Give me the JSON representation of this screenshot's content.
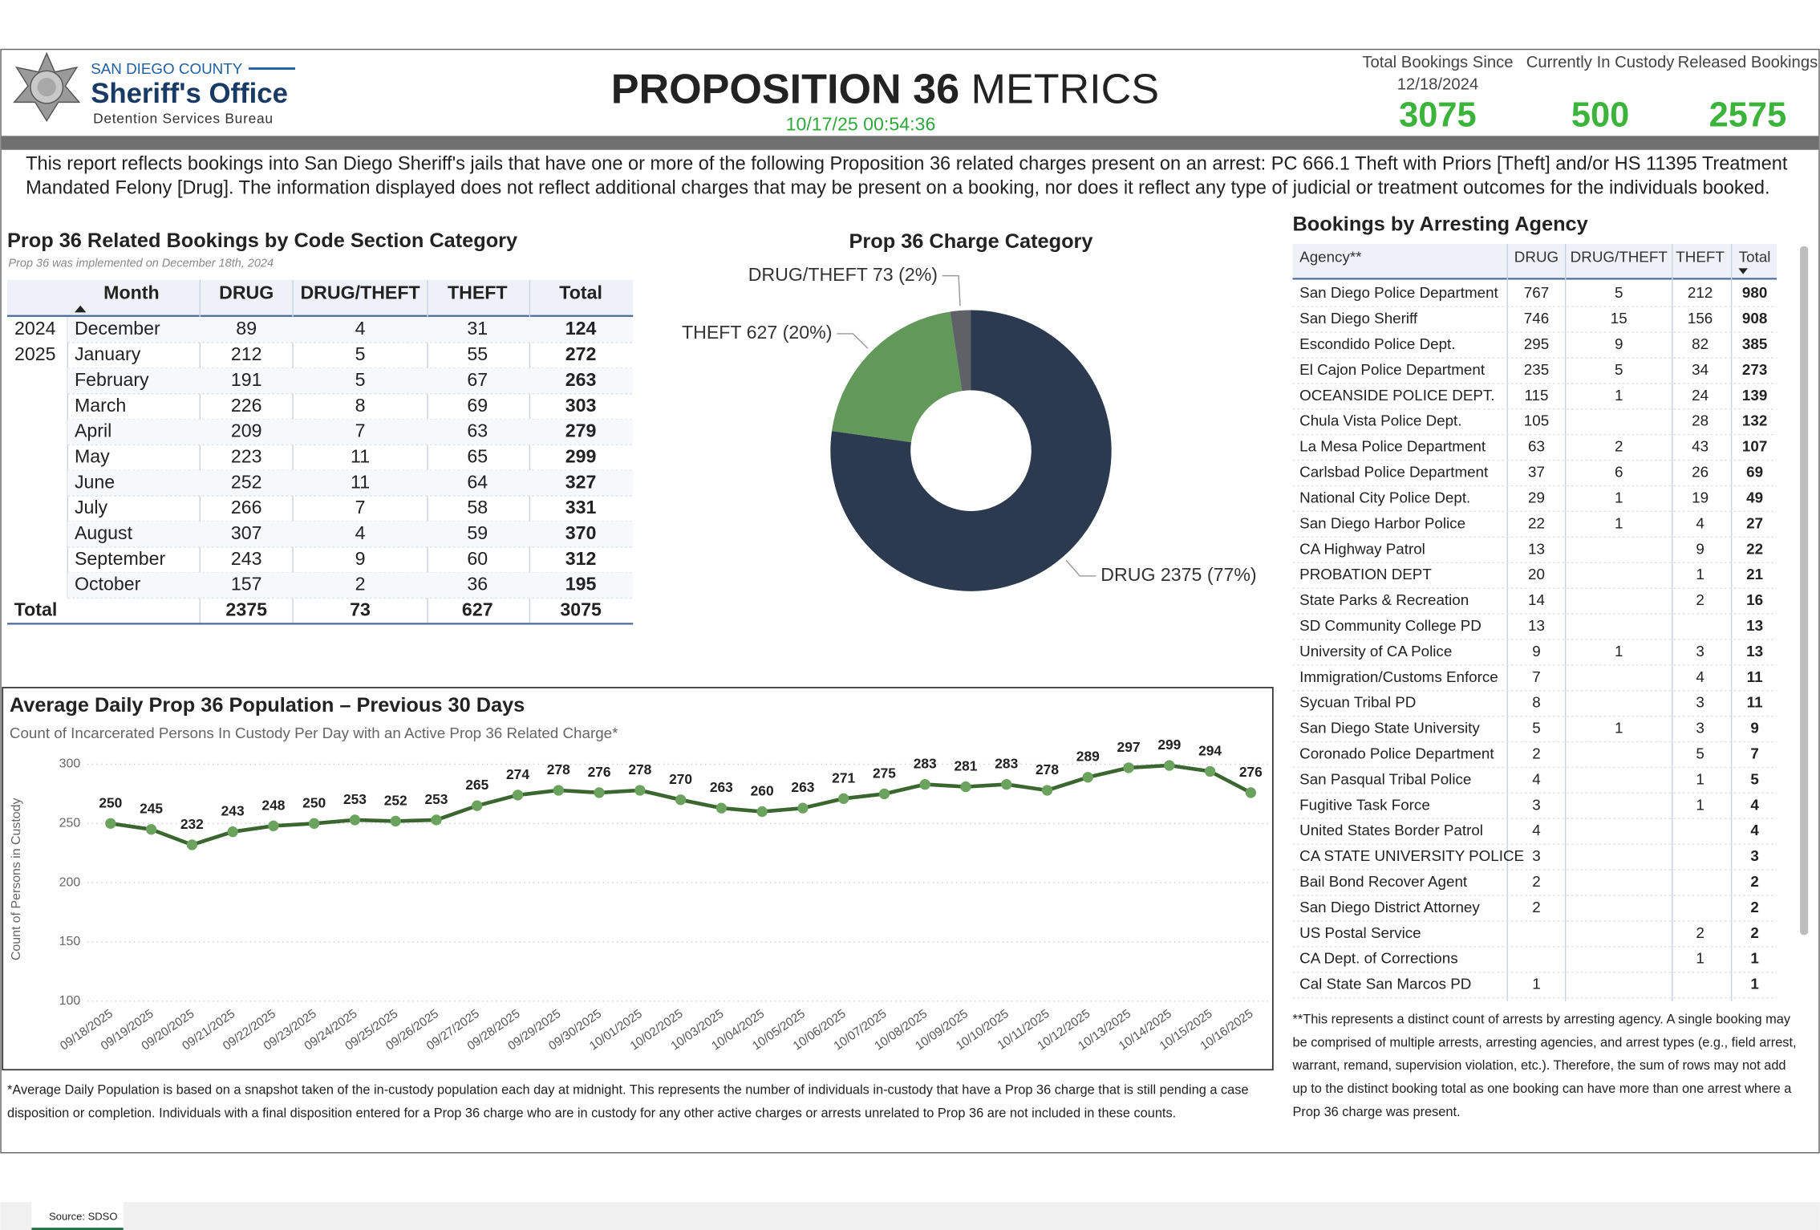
{
  "header": {
    "org_line1": "SAN DIEGO COUNTY",
    "org_line2": "Sheriff's Office",
    "org_line3": "Detention Services Bureau",
    "title_bold": "PROPOSITION 36",
    "title_light": "METRICS",
    "timestamp": "10/17/25 00:54:36",
    "kpis": [
      {
        "label": "Total Bookings Since 12/18/2024",
        "value": 3075
      },
      {
        "label": "Currently In Custody",
        "value": 500
      },
      {
        "label": "Released Bookings",
        "value": 2575
      }
    ]
  },
  "description": "This report reflects bookings into San Diego Sheriff's jails that have one or more of the following Proposition 36 related charges present on an arrest: PC 666.1 Theft with Priors [Theft] and/or HS 11395 Treatment Mandated Felony [Drug]. The information displayed does not reflect additional charges that may be present on a booking, nor does it reflect any type of judicial or treatment outcomes for the individuals booked.",
  "month_table": {
    "title": "Prop 36 Related Bookings by Code Section Category",
    "subtitle": "Prop 36 was implemented on December 18th, 2024",
    "columns": [
      "Month",
      "DRUG",
      "DRUG/THEFT",
      "THEFT",
      "Total"
    ],
    "rows": [
      [
        2024,
        "December",
        89,
        4,
        31,
        124
      ],
      [
        2025,
        "January",
        212,
        5,
        55,
        272
      ],
      [
        null,
        "February",
        191,
        5,
        67,
        263
      ],
      [
        null,
        "March",
        226,
        8,
        69,
        303
      ],
      [
        null,
        "April",
        209,
        7,
        63,
        279
      ],
      [
        null,
        "May",
        223,
        11,
        65,
        299
      ],
      [
        null,
        "June",
        252,
        11,
        64,
        327
      ],
      [
        null,
        "July",
        266,
        7,
        58,
        331
      ],
      [
        null,
        "August",
        307,
        4,
        59,
        370
      ],
      [
        null,
        "September",
        243,
        9,
        60,
        312
      ],
      [
        null,
        "October",
        157,
        2,
        36,
        195
      ]
    ],
    "total": {
      "label": "Total",
      "values": [
        2375,
        73,
        627,
        3075
      ]
    }
  },
  "chart_data": [
    {
      "type": "pie",
      "title": "Prop 36 Charge Category",
      "categories": [
        "DRUG",
        "THEFT",
        "DRUG/THEFT"
      ],
      "values": [
        2375,
        627,
        73
      ],
      "value_labels": [
        "DRUG 2375 (77%)",
        "THEFT 627 (20%)",
        "DRUG/THEFT 73 (2%)"
      ],
      "colors": [
        "#2b3a4e",
        "#62995a",
        "#5e6266"
      ],
      "donut": true
    },
    {
      "type": "line",
      "title": "Average Daily Prop 36 Population – Previous 30 Days",
      "subtitle": "Count of Incarcerated Persons In Custody Per Day with an Active Prop 36 Related Charge*",
      "y_label": "Count of Persons in Custody",
      "x": [
        "09/18/2025",
        "09/19/2025",
        "09/20/2025",
        "09/21/2025",
        "09/22/2025",
        "09/23/2025",
        "09/24/2025",
        "09/25/2025",
        "09/26/2025",
        "09/27/2025",
        "09/28/2025",
        "09/29/2025",
        "09/30/2025",
        "10/01/2025",
        "10/02/2025",
        "10/03/2025",
        "10/04/2025",
        "10/05/2025",
        "10/06/2025",
        "10/07/2025",
        "10/08/2025",
        "10/09/2025",
        "10/10/2025",
        "10/11/2025",
        "10/12/2025",
        "10/13/2025",
        "10/14/2025",
        "10/15/2025",
        "10/16/2025"
      ],
      "values": [
        250,
        245,
        232,
        243,
        248,
        250,
        253,
        252,
        253,
        265,
        274,
        278,
        276,
        278,
        270,
        263,
        260,
        263,
        271,
        275,
        283,
        281,
        283,
        278,
        289,
        297,
        299,
        294,
        276
      ],
      "color": "#3b6630",
      "marker_color": "#6aa25e",
      "ylim": [
        100,
        300
      ],
      "yticks": [
        100,
        150,
        200,
        250,
        300
      ],
      "grid": true
    }
  ],
  "line_footnote": "*Average Daily Population is based on a snapshot taken of the in-custody population each day at midnight. This represents the number of individuals in-custody that have a Prop 36 charge that is still pending a case disposition or completion. Individuals with a final disposition entered for a Prop 36 charge who are in custody for any other active charges or arrests unrelated to Prop 36 are not included in these counts.",
  "agency_table": {
    "title": "Bookings by Arresting Agency",
    "columns": [
      "Agency**",
      "DRUG",
      "DRUG/THEFT",
      "THEFT",
      "Total"
    ],
    "rows": [
      [
        "San Diego Police Department",
        767,
        5,
        212,
        980
      ],
      [
        "San Diego Sheriff",
        746,
        15,
        156,
        908
      ],
      [
        "Escondido Police Dept.",
        295,
        9,
        82,
        385
      ],
      [
        "El Cajon Police Department",
        235,
        5,
        34,
        273
      ],
      [
        "OCEANSIDE POLICE DEPT.",
        115,
        1,
        24,
        139
      ],
      [
        "Chula Vista Police Dept.",
        105,
        null,
        28,
        132
      ],
      [
        "La Mesa Police Department",
        63,
        2,
        43,
        107
      ],
      [
        "Carlsbad Police Department",
        37,
        6,
        26,
        69
      ],
      [
        "National City Police Dept.",
        29,
        1,
        19,
        49
      ],
      [
        "San Diego Harbor Police",
        22,
        1,
        4,
        27
      ],
      [
        "CA Highway Patrol",
        13,
        null,
        9,
        22
      ],
      [
        "PROBATION DEPT",
        20,
        null,
        1,
        21
      ],
      [
        "State Parks & Recreation",
        14,
        null,
        2,
        16
      ],
      [
        "SD Community College PD",
        13,
        null,
        null,
        13
      ],
      [
        "University of CA Police",
        9,
        1,
        3,
        13
      ],
      [
        "Immigration/Customs Enforce",
        7,
        null,
        4,
        11
      ],
      [
        "Sycuan Tribal PD",
        8,
        null,
        3,
        11
      ],
      [
        "San Diego State University",
        5,
        1,
        3,
        9
      ],
      [
        "Coronado Police Department",
        2,
        null,
        5,
        7
      ],
      [
        "San Pasqual Tribal Police",
        4,
        null,
        1,
        5
      ],
      [
        "Fugitive Task Force",
        3,
        null,
        1,
        4
      ],
      [
        "United States Border Patrol",
        4,
        null,
        null,
        4
      ],
      [
        "CA STATE UNIVERSITY POLICE",
        3,
        null,
        null,
        3
      ],
      [
        "Bail Bond Recover Agent",
        2,
        null,
        null,
        2
      ],
      [
        "San Diego District Attorney",
        2,
        null,
        null,
        2
      ],
      [
        "US Postal Service",
        null,
        null,
        2,
        2
      ],
      [
        "CA Dept. of Corrections",
        null,
        null,
        1,
        1
      ],
      [
        "Cal State San Marcos PD",
        1,
        null,
        null,
        1
      ]
    ],
    "footnote": "**This represents a distinct count of arrests by arresting agency. A single booking may be comprised of multiple arrests, arresting agencies, and arrest types (e.g., field arrest, warrant, remand, supervision violation, etc.). Therefore, the sum of rows may not add up to the distinct booking total as one booking can have more than one arrest where a Prop 36 charge was present."
  },
  "footer": {
    "tab": "Source: SDSO"
  }
}
